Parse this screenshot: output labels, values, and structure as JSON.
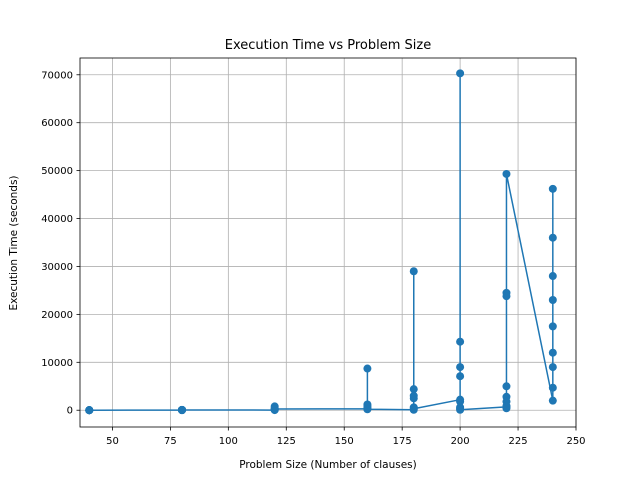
{
  "chart_data": {
    "type": "line",
    "title": "Execution Time vs Problem Size",
    "xlabel": "Problem Size (Number of clauses)",
    "ylabel": "Execution Time (seconds)",
    "xlim": [
      36,
      250
    ],
    "ylim": [
      -3500,
      73500
    ],
    "xticks": [
      50,
      75,
      100,
      125,
      150,
      175,
      200,
      225,
      250
    ],
    "yticks": [
      0,
      10000,
      20000,
      30000,
      40000,
      50000,
      60000,
      70000
    ],
    "grid": true,
    "marker": "circle",
    "color": "#1f77b4",
    "series": [
      {
        "points": [
          [
            40,
            5
          ],
          [
            40,
            8
          ],
          [
            40,
            12
          ],
          [
            40,
            3
          ],
          [
            40,
            10
          ],
          [
            40,
            6
          ],
          [
            40,
            15
          ],
          [
            40,
            4
          ],
          [
            80,
            20
          ],
          [
            80,
            35
          ],
          [
            80,
            60
          ],
          [
            80,
            15
          ],
          [
            80,
            45
          ],
          [
            80,
            80
          ],
          [
            80,
            25
          ],
          [
            80,
            50
          ],
          [
            120,
            30
          ],
          [
            120,
            150
          ],
          [
            120,
            400
          ],
          [
            120,
            800
          ],
          [
            120,
            100
          ],
          [
            120,
            250
          ],
          [
            160,
            300
          ],
          [
            160,
            600
          ],
          [
            160,
            1200
          ],
          [
            160,
            8700
          ],
          [
            160,
            900
          ],
          [
            160,
            200
          ],
          [
            180,
            100
          ],
          [
            180,
            600
          ],
          [
            180,
            2500
          ],
          [
            180,
            29000
          ],
          [
            180,
            4400
          ],
          [
            180,
            3000
          ],
          [
            180,
            300
          ],
          [
            200,
            2200
          ],
          [
            200,
            600
          ],
          [
            200,
            70300
          ],
          [
            200,
            14300
          ],
          [
            200,
            9000
          ],
          [
            200,
            7100
          ],
          [
            200,
            1800
          ],
          [
            200,
            300
          ],
          [
            200,
            100
          ],
          [
            220,
            700
          ],
          [
            220,
            400
          ],
          [
            220,
            2800
          ],
          [
            220,
            1800
          ],
          [
            220,
            24500
          ],
          [
            220,
            23800
          ],
          [
            220,
            5000
          ],
          [
            220,
            900
          ],
          [
            220,
            49300
          ],
          [
            240,
            2000
          ],
          [
            240,
            4700
          ],
          [
            240,
            46200
          ],
          [
            240,
            36000
          ],
          [
            240,
            28000
          ],
          [
            240,
            23000
          ],
          [
            240,
            17500
          ],
          [
            240,
            12000
          ],
          [
            240,
            9000
          ]
        ]
      }
    ]
  }
}
